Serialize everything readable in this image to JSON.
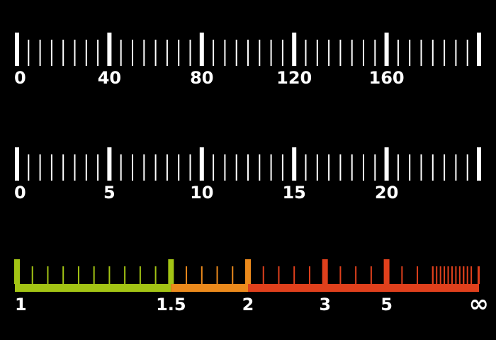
{
  "scales": [
    {
      "id": "speed-scale",
      "type": "linear",
      "min": 0,
      "max": 200,
      "minor_step": 5,
      "major_step": 40,
      "labels": [
        "0",
        "40",
        "80",
        "120",
        "160"
      ],
      "label_values": [
        0,
        40,
        80,
        120,
        160
      ],
      "color": "#ffffff"
    },
    {
      "id": "load-scale",
      "type": "linear",
      "min": 0,
      "max": 25,
      "minor_step": 0.625,
      "major_step": 5,
      "labels": [
        "0",
        "5",
        "10",
        "15",
        "20"
      ],
      "label_values": [
        0,
        5,
        10,
        15,
        20
      ],
      "color": "#ffffff"
    },
    {
      "id": "swr-scale",
      "type": "reciprocal",
      "min": 1,
      "max": "∞",
      "labels": [
        "1",
        "1.5",
        "2",
        "3",
        "5",
        "∞"
      ],
      "label_values": [
        1,
        1.5,
        2,
        3,
        5,
        "inf"
      ],
      "major_values": [
        1,
        1.5,
        2,
        3,
        5,
        "inf"
      ],
      "zones": [
        {
          "from": 1,
          "to": 1.5,
          "color": "#a3c414"
        },
        {
          "from": 1.5,
          "to": 2,
          "color": "#ec8a1c"
        },
        {
          "from": 2,
          "to": "inf",
          "color": "#e0401c"
        }
      ]
    }
  ]
}
